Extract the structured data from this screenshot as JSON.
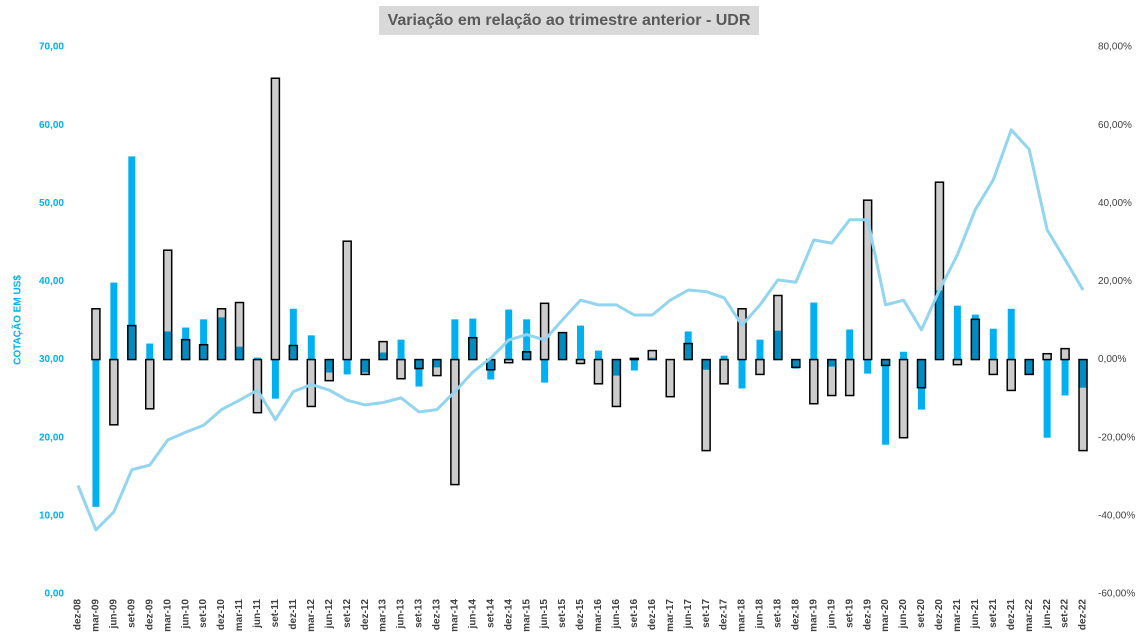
{
  "chart_data": {
    "type": "bar",
    "title": "Variação em relação ao trimestre anterior - UDR",
    "y_label": "COTAÇÃO EM US$",
    "categories": [
      "dez-08",
      "mar-09",
      "jun-09",
      "set-09",
      "dez-09",
      "mar-10",
      "jun-10",
      "set-10",
      "dez-10",
      "mar-11",
      "jun-11",
      "set-11",
      "dez-11",
      "mar-12",
      "jun-12",
      "set-12",
      "dez-12",
      "mar-13",
      "jun-13",
      "set-13",
      "dez-13",
      "mar-14",
      "jun-14",
      "set-14",
      "dez-14",
      "mar-15",
      "jun-15",
      "set-15",
      "dez-15",
      "mar-16",
      "jun-16",
      "set-16",
      "dez-16",
      "mar-17",
      "jun-17",
      "set-17",
      "dez-17",
      "mar-18",
      "jun-18",
      "set-18",
      "dez-18",
      "mar-19",
      "jun-19",
      "set-19",
      "dez-19",
      "mar-20",
      "jun-20",
      "set-20",
      "dez-20",
      "mar-21",
      "jun-21",
      "set-21",
      "dez-21",
      "mar-22",
      "jun-22",
      "set-22",
      "dez-22"
    ],
    "series": [
      {
        "type": "bar",
        "axis": "y2",
        "color": "#00b0f0",
        "values": [
          null,
          -37.7,
          19.7,
          52,
          4.1,
          7.2,
          8.2,
          10.3,
          10.8,
          3.3,
          0.5,
          -10,
          13,
          6.2,
          -3.3,
          -3.8,
          -3.3,
          1.8,
          5.1,
          -6.9,
          -2,
          10.3,
          10.5,
          -5.1,
          12.8,
          10.3,
          -5.9,
          6.9,
          8.7,
          2.3,
          -4.1,
          -2.8,
          0.5,
          0,
          7.2,
          -2.6,
          1,
          -7.4,
          5.1,
          7.4,
          -2.3,
          14.6,
          -1.8,
          7.7,
          -3.6,
          -21.8,
          2,
          -12.8,
          17.7,
          13.8,
          11.5,
          7.9,
          13,
          -3.8,
          -20,
          -9.2,
          -7.2
        ]
      },
      {
        "type": "bar",
        "axis": "y2",
        "color": "#000000",
        "values": [
          null,
          13,
          -16.7,
          8.7,
          -12.6,
          28,
          5.1,
          3.8,
          13,
          14.6,
          -13.6,
          72,
          3.6,
          -12,
          -5.4,
          30.3,
          -3.8,
          4.6,
          -4.9,
          -2.3,
          -4.1,
          -32,
          5.6,
          -2.6,
          -0.8,
          2,
          14.4,
          6.9,
          -1,
          -6.2,
          -12,
          0.3,
          2.3,
          -9.5,
          4.1,
          -23.3,
          -6.2,
          13,
          -3.8,
          16.4,
          -2,
          -11.3,
          -9.2,
          -9.2,
          40.8,
          -1.5,
          -20,
          -7.2,
          45.4,
          -1.3,
          10.3,
          -3.8,
          -7.9,
          -3.8,
          1.5,
          2.8,
          -23.3
        ]
      },
      {
        "type": "line",
        "color": "#92d5f0",
        "values": [
          13.9,
          8.2,
          10.5,
          15.9,
          16.5,
          19.7,
          20.7,
          21.6,
          23.6,
          24.8,
          26.1,
          22.3,
          25.9,
          26.8,
          26.1,
          24.8,
          24.2,
          24.5,
          25.1,
          23.3,
          23.6,
          25.9,
          28.4,
          30.2,
          32.5,
          33.2,
          32.5,
          35.1,
          37.6,
          37,
          37,
          35.7,
          35.7,
          37.6,
          38.9,
          38.7,
          37.9,
          34.4,
          37,
          40.2,
          39.9,
          45.3,
          44.9,
          47.9,
          47.9,
          37,
          37.6,
          33.8,
          38.9,
          43.4,
          49.2,
          53,
          59.4,
          56.9,
          46.6,
          42.8,
          38.9
        ]
      }
    ],
    "ylim": [
      0,
      70
    ],
    "yticks": [
      {
        "value": 0,
        "label": "0,00"
      },
      {
        "value": 10,
        "label": "10,00"
      },
      {
        "value": 20,
        "label": "20,00"
      },
      {
        "value": 30,
        "label": "30,00"
      },
      {
        "value": 40,
        "label": "40,00"
      },
      {
        "value": 50,
        "label": "50,00"
      },
      {
        "value": 60,
        "label": "60,00"
      },
      {
        "value": 70,
        "label": "70,00"
      }
    ],
    "y2lim": [
      -60,
      80
    ],
    "y2ticks": [
      {
        "value": -60,
        "label": "-60,00%"
      },
      {
        "value": -40,
        "label": "-40,00%"
      },
      {
        "value": -20,
        "label": "-20,00%"
      },
      {
        "value": 0,
        "label": "0,00%"
      },
      {
        "value": 20,
        "label": "20,00%"
      },
      {
        "value": 40,
        "label": "40,00%"
      },
      {
        "value": 60,
        "label": "60,00%"
      },
      {
        "value": 80,
        "label": "80,00%"
      }
    ],
    "grid": false
  }
}
